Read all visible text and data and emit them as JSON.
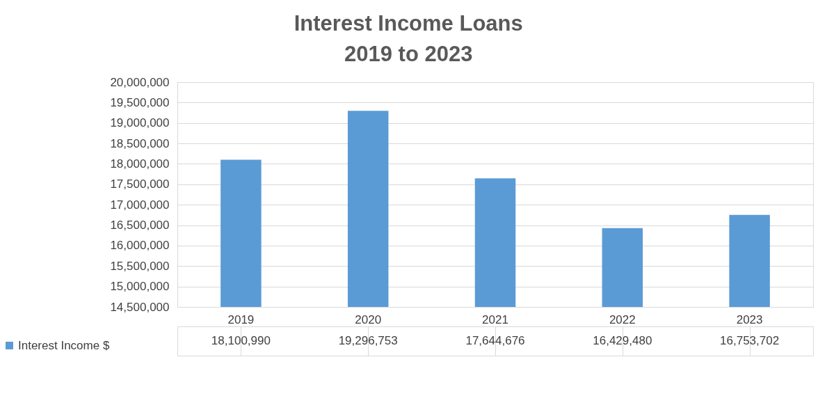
{
  "chart_data": {
    "type": "bar",
    "title": "Interest Income Loans\n2019 to 2023",
    "categories": [
      "2019",
      "2020",
      "2021",
      "2022",
      "2023"
    ],
    "series": [
      {
        "name": "Interest Income $",
        "color": "#5b9bd5",
        "values": [
          18100990,
          19296753,
          17644676,
          16429480,
          16753702
        ],
        "value_labels": [
          "18,100,990",
          "19,296,753",
          "17,644,676",
          "16,429,480",
          "16,753,702"
        ]
      }
    ],
    "ylim": [
      14500000,
      20000000
    ],
    "yticks": [
      {
        "value": 14500000,
        "label": "14,500,000"
      },
      {
        "value": 15000000,
        "label": "15,000,000"
      },
      {
        "value": 15500000,
        "label": "15,500,000"
      },
      {
        "value": 16000000,
        "label": "16,000,000"
      },
      {
        "value": 16500000,
        "label": "16,500,000"
      },
      {
        "value": 17000000,
        "label": "17,000,000"
      },
      {
        "value": 17500000,
        "label": "17,500,000"
      },
      {
        "value": 18000000,
        "label": "18,000,000"
      },
      {
        "value": 18500000,
        "label": "18,500,000"
      },
      {
        "value": 19000000,
        "label": "19,000,000"
      },
      {
        "value": 19500000,
        "label": "19,500,000"
      },
      {
        "value": 20000000,
        "label": "20,000,000"
      }
    ],
    "grid": "y",
    "legend": "bottom left"
  }
}
